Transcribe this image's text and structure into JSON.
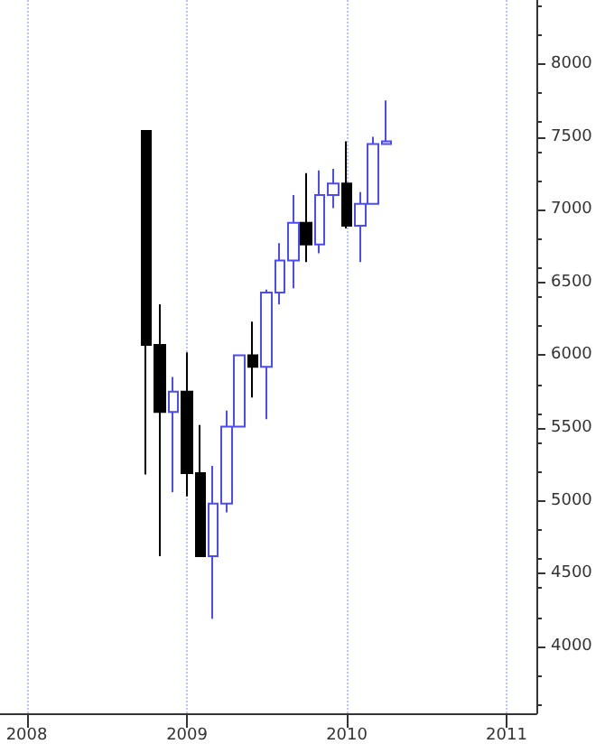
{
  "chart_data": {
    "type": "candlestick",
    "x": [
      "2008-10",
      "2008-11",
      "2008-12",
      "2009-01",
      "2009-02",
      "2009-03",
      "2009-04",
      "2009-05",
      "2009-06",
      "2009-07",
      "2009-08",
      "2009-09",
      "2009-10",
      "2009-11",
      "2009-12",
      "2010-01",
      "2010-02",
      "2010-03",
      "2010-04"
    ],
    "ohlc": [
      [
        7540,
        7540,
        5180,
        6070
      ],
      [
        6070,
        6350,
        4620,
        5610
      ],
      [
        5610,
        5850,
        5060,
        5750
      ],
      [
        5750,
        6020,
        5030,
        5190
      ],
      [
        5190,
        5520,
        4620,
        4620
      ],
      [
        4620,
        5240,
        4190,
        4980
      ],
      [
        4980,
        5620,
        4920,
        5510
      ],
      [
        5510,
        6000,
        5510,
        6000
      ],
      [
        6000,
        6230,
        5710,
        5920
      ],
      [
        5920,
        6450,
        5560,
        6430
      ],
      [
        6430,
        6770,
        6350,
        6650
      ],
      [
        6650,
        7100,
        6460,
        6910
      ],
      [
        6910,
        7250,
        6640,
        6760
      ],
      [
        6760,
        7270,
        6700,
        7100
      ],
      [
        7100,
        7280,
        7010,
        7180
      ],
      [
        7180,
        7470,
        6870,
        6890
      ],
      [
        6890,
        7120,
        6640,
        7040
      ],
      [
        7040,
        7500,
        7040,
        7450
      ],
      [
        7450,
        7750,
        7450,
        7470
      ]
    ],
    "colors": [
      "#000000",
      "#000000",
      "#4a4aff",
      "#000000",
      "#000000",
      "#4a4aff",
      "#4a4aff",
      "#4a4aff",
      "#000000",
      "#4a4aff",
      "#4a4aff",
      "#4a4aff",
      "#000000",
      "#4a4aff",
      "#4a4aff",
      "#000000",
      "#4a4aff",
      "#4a4aff",
      "#4a4aff"
    ],
    "xlim": [
      "2007-11",
      "2011-03-10"
    ],
    "xticks": [
      "2008",
      "2009",
      "2010",
      "2011"
    ],
    "ylim": [
      3540,
      8440
    ],
    "yticks": [
      4000,
      4500,
      5000,
      5500,
      6000,
      6500,
      7000,
      7500,
      8000
    ],
    "grid": "x"
  }
}
